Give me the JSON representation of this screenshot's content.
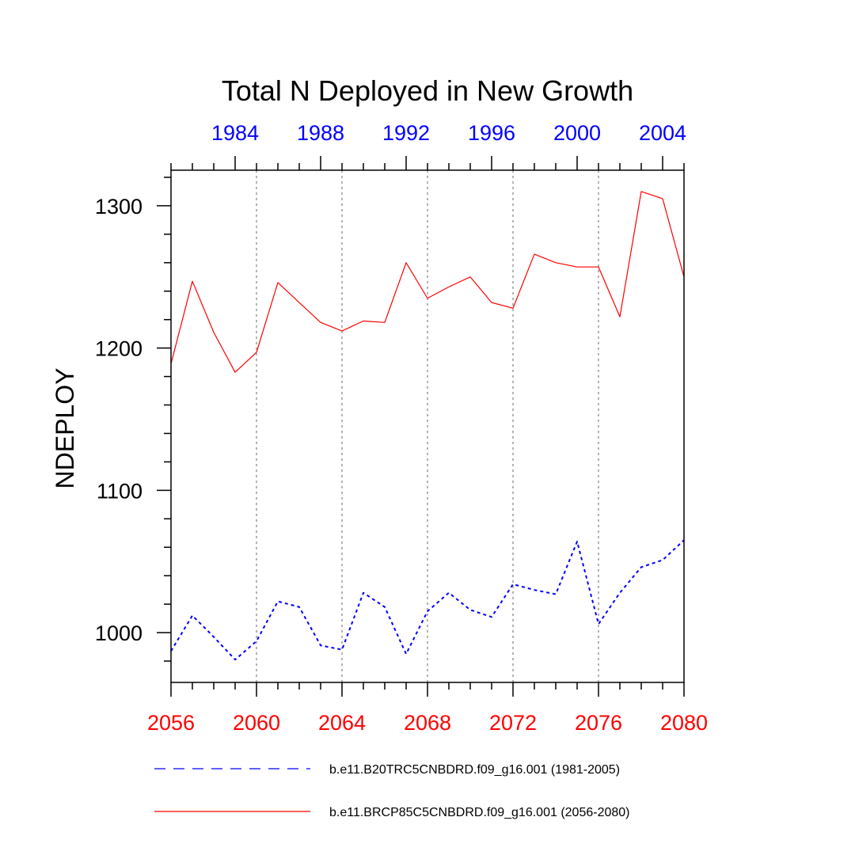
{
  "chart_data": {
    "type": "line",
    "title": "Total N Deployed in New Growth",
    "ylabel": "NDEPLOY",
    "ylim": [
      965,
      1325
    ],
    "yticks": [
      1000,
      1100,
      1200,
      1300
    ],
    "y_minor_step": 20,
    "bottom_axis": {
      "range": [
        2056,
        2080
      ],
      "ticks": [
        "2056",
        "2060",
        "2064",
        "2068",
        "2072",
        "2076",
        "2080"
      ],
      "color": "#ff0000"
    },
    "top_axis": {
      "range": [
        1981,
        2005
      ],
      "ticks": [
        "1984",
        "1988",
        "1992",
        "1996",
        "2000",
        "2004"
      ],
      "color": "#0000ff"
    },
    "vertical_gridlines_at": [
      2060,
      2064,
      2068,
      2072,
      2076
    ],
    "series": [
      {
        "name": "b.e11.B20TRC5CNBDRD.f09_g16.001 (1981-2005)",
        "color": "#0000ff",
        "style": "dashed",
        "x": [
          1981,
          1982,
          1983,
          1984,
          1985,
          1986,
          1987,
          1988,
          1989,
          1990,
          1991,
          1992,
          1993,
          1994,
          1995,
          1996,
          1997,
          1998,
          1999,
          2000,
          2001,
          2002,
          2003,
          2004,
          2005
        ],
        "values": [
          987,
          1012,
          997,
          981,
          994,
          1022,
          1018,
          991,
          988,
          1028,
          1018,
          985,
          1015,
          1028,
          1016,
          1011,
          1034,
          1030,
          1027,
          1064,
          1006,
          1028,
          1046,
          1051,
          1065
        ]
      },
      {
        "name": "b.e11.BRCP85C5CNBDRD.f09_g16.001 (2056-2080)",
        "color": "#ff0000",
        "style": "solid",
        "x": [
          2056,
          2057,
          2058,
          2059,
          2060,
          2061,
          2062,
          2063,
          2064,
          2065,
          2066,
          2067,
          2068,
          2069,
          2070,
          2071,
          2072,
          2073,
          2074,
          2075,
          2076,
          2077,
          2078,
          2079,
          2080
        ],
        "values": [
          1189,
          1247,
          1211,
          1183,
          1197,
          1246,
          1232,
          1218,
          1212,
          1219,
          1218,
          1260,
          1235,
          1243,
          1250,
          1232,
          1228,
          1266,
          1260,
          1257,
          1257,
          1222,
          1310,
          1305,
          1250
        ]
      }
    ],
    "legend_position": "bottom"
  }
}
